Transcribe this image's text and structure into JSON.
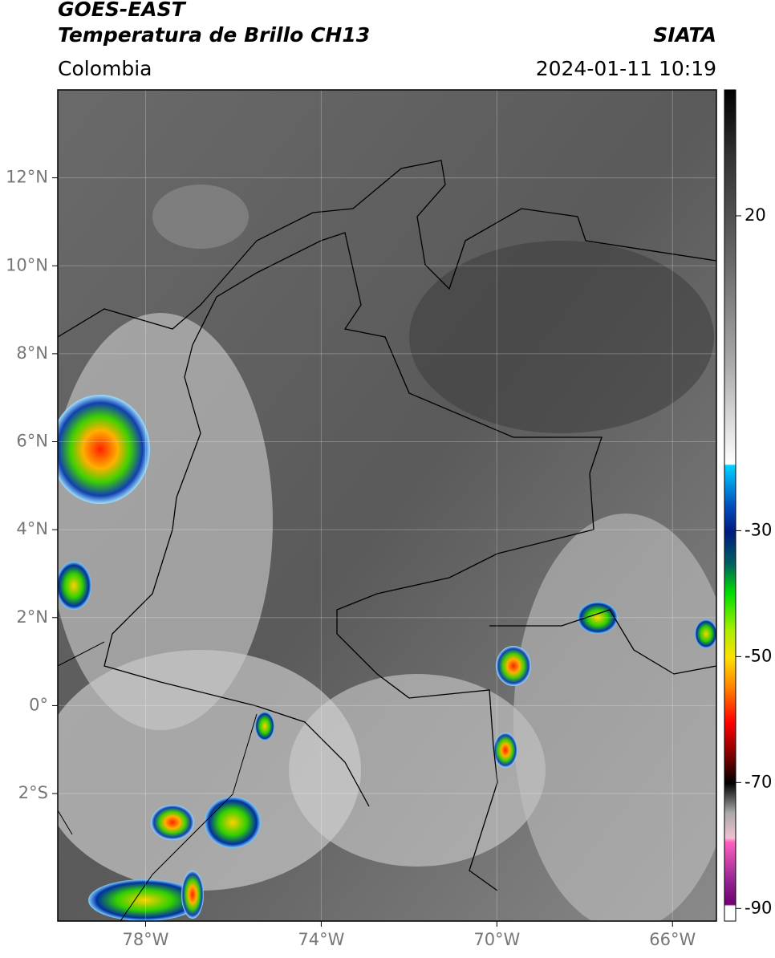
{
  "header": {
    "title": "GOES-EAST",
    "subtitle": "Temperatura de Brillo CH13",
    "source": "SIATA",
    "region": "Colombia",
    "datetime": "2024-01-11 10:19"
  },
  "map": {
    "xlim": [
      -80,
      -65
    ],
    "ylim": [
      -4.9,
      14
    ],
    "xticks": [
      {
        "value": -78,
        "label": "78°W"
      },
      {
        "value": -74,
        "label": "74°W"
      },
      {
        "value": -70,
        "label": "70°W"
      },
      {
        "value": -66,
        "label": "66°W"
      }
    ],
    "yticks": [
      {
        "value": 12,
        "label": "12°N"
      },
      {
        "value": 10,
        "label": "10°N"
      },
      {
        "value": 8,
        "label": "8°N"
      },
      {
        "value": 6,
        "label": "6°N"
      },
      {
        "value": 4,
        "label": "4°N"
      },
      {
        "value": 2,
        "label": "2°N"
      },
      {
        "value": 0,
        "label": "0°"
      },
      {
        "value": -2,
        "label": "2°S"
      }
    ]
  },
  "colorbar": {
    "lim": [
      -92,
      40
    ],
    "ticks": [
      20,
      -30,
      -50,
      -70,
      -90
    ]
  }
}
